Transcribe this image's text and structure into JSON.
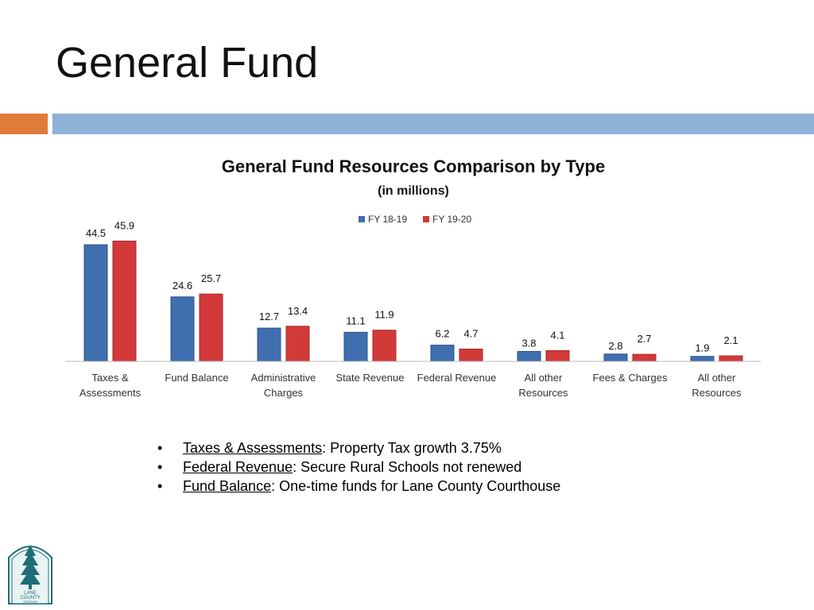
{
  "slide": {
    "title": "General Fund"
  },
  "bullets": [
    {
      "term": "Taxes & Assessments",
      "text": ": Property Tax growth 3.75%"
    },
    {
      "term": "Federal Revenue",
      "text": ": Secure Rural Schools not renewed"
    },
    {
      "term": "Fund Balance",
      "text": ": One-time funds for Lane County Courthouse"
    }
  ],
  "bullet_glyph": "•",
  "logo": {
    "text_lines": [
      "LANE",
      "COUNTY",
      "OREGON"
    ],
    "color": "#1E6E78"
  },
  "colors": {
    "accent_orange": "#E07B39",
    "accent_blue": "#8EB1D6",
    "series_blue": "#3F6FAF",
    "series_red": "#D23A3A"
  },
  "chart_data": {
    "type": "bar",
    "title": "General Fund Resources Comparison by Type",
    "subtitle": "(in millions)",
    "legend_position": "top-center",
    "grid": false,
    "ylim": [
      0,
      50
    ],
    "categories": [
      [
        "Taxes &",
        "Assessments"
      ],
      [
        "Fund Balance"
      ],
      [
        "Administrative",
        "Charges"
      ],
      [
        "State Revenue"
      ],
      [
        "Federal Revenue"
      ],
      [
        "All other",
        "Resources"
      ],
      [
        "Fees & Charges"
      ],
      [
        "All other",
        "Resources"
      ]
    ],
    "series": [
      {
        "name": "FY 18-19",
        "color": "#3F6FAF",
        "values": [
          44.5,
          24.6,
          12.7,
          11.1,
          6.2,
          3.8,
          2.8,
          1.9
        ]
      },
      {
        "name": "FY 19-20",
        "color": "#D23A3A",
        "values": [
          45.9,
          25.7,
          13.4,
          11.9,
          4.7,
          4.1,
          2.7,
          2.1
        ]
      }
    ]
  }
}
